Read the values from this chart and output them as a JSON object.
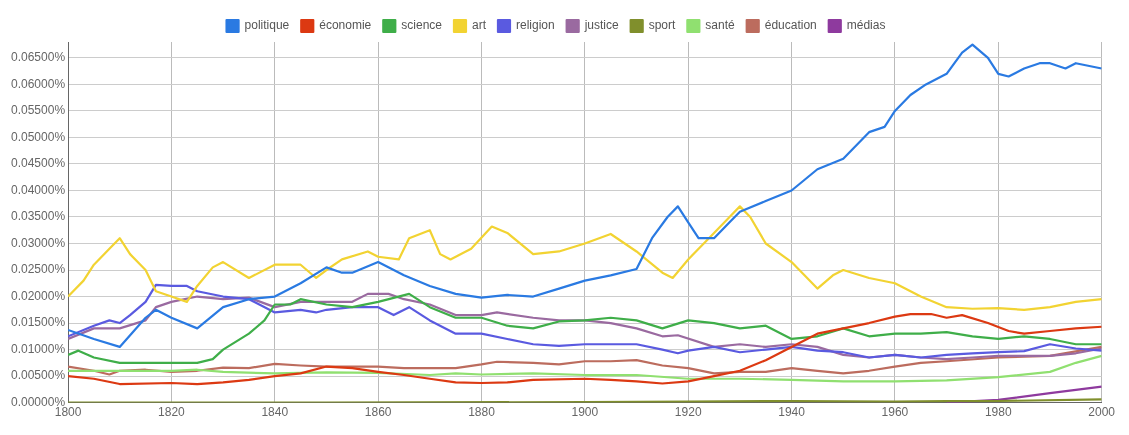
{
  "chart_data": {
    "type": "line",
    "legend": "top",
    "grid": true,
    "marker": "none",
    "line_style": "solid",
    "xlim": [
      1800,
      2000
    ],
    "xticks": [
      1800,
      1820,
      1840,
      1860,
      1880,
      1900,
      1920,
      1940,
      1960,
      1980,
      2000
    ],
    "ylim": [
      0,
      0.068
    ],
    "yticks": [
      {
        "value": 0,
        "label": "0.00000%"
      },
      {
        "value": 0.005,
        "label": "0.00500%"
      },
      {
        "value": 0.01,
        "label": "0.01000%"
      },
      {
        "value": 0.015,
        "label": "0.01500%"
      },
      {
        "value": 0.02,
        "label": "0.02000%"
      },
      {
        "value": 0.025,
        "label": "0.02500%"
      },
      {
        "value": 0.03,
        "label": "0.03000%"
      },
      {
        "value": 0.035,
        "label": "0.03500%"
      },
      {
        "value": 0.04,
        "label": "0.04000%"
      },
      {
        "value": 0.045,
        "label": "0.04500%"
      },
      {
        "value": 0.05,
        "label": "0.05000%"
      },
      {
        "value": 0.055,
        "label": "0.05500%"
      },
      {
        "value": 0.06,
        "label": "0.06000%"
      },
      {
        "value": 0.065,
        "label": "0.06500%"
      }
    ],
    "series": [
      {
        "name": "politique",
        "color": "#2a7ae2",
        "x": [
          1800,
          1805,
          1810,
          1815,
          1817,
          1820,
          1825,
          1830,
          1835,
          1840,
          1845,
          1850,
          1853,
          1855,
          1860,
          1865,
          1870,
          1875,
          1880,
          1885,
          1890,
          1895,
          1900,
          1905,
          1910,
          1913,
          1916,
          1918,
          1920,
          1922,
          1925,
          1928,
          1930,
          1935,
          1940,
          1945,
          1950,
          1955,
          1958,
          1960,
          1963,
          1966,
          1970,
          1973,
          1975,
          1978,
          1980,
          1982,
          1985,
          1988,
          1990,
          1993,
          1995,
          2000
        ],
        "values": [
          0.0137,
          0.012,
          0.0105,
          0.016,
          0.0175,
          0.016,
          0.014,
          0.018,
          0.0195,
          0.02,
          0.0225,
          0.0255,
          0.0245,
          0.0245,
          0.0265,
          0.024,
          0.022,
          0.0205,
          0.0198,
          0.0203,
          0.02,
          0.0215,
          0.023,
          0.024,
          0.0252,
          0.031,
          0.035,
          0.037,
          0.034,
          0.031,
          0.031,
          0.034,
          0.036,
          0.038,
          0.04,
          0.044,
          0.046,
          0.051,
          0.052,
          0.055,
          0.058,
          0.06,
          0.062,
          0.066,
          0.0675,
          0.065,
          0.062,
          0.0615,
          0.063,
          0.064,
          0.064,
          0.063,
          0.064,
          0.063
        ]
      },
      {
        "name": "économie",
        "color": "#dc3912",
        "x": [
          1800,
          1805,
          1810,
          1820,
          1825,
          1830,
          1835,
          1840,
          1845,
          1850,
          1855,
          1860,
          1865,
          1870,
          1875,
          1880,
          1885,
          1890,
          1900,
          1905,
          1910,
          1915,
          1920,
          1925,
          1930,
          1935,
          1940,
          1945,
          1950,
          1955,
          1960,
          1963,
          1967,
          1970,
          1973,
          1978,
          1982,
          1985,
          1990,
          1995,
          2000
        ],
        "values": [
          0.005,
          0.0045,
          0.0035,
          0.0037,
          0.0035,
          0.0038,
          0.0043,
          0.005,
          0.0055,
          0.0068,
          0.0065,
          0.0058,
          0.0052,
          0.0045,
          0.0038,
          0.0037,
          0.0038,
          0.0043,
          0.0045,
          0.0043,
          0.004,
          0.0036,
          0.004,
          0.005,
          0.006,
          0.008,
          0.0105,
          0.013,
          0.014,
          0.015,
          0.0162,
          0.0167,
          0.0167,
          0.016,
          0.0165,
          0.015,
          0.0135,
          0.013,
          0.0135,
          0.014,
          0.0143
        ]
      },
      {
        "name": "science",
        "color": "#3fae49",
        "x": [
          1800,
          1802,
          1805,
          1810,
          1815,
          1820,
          1825,
          1828,
          1830,
          1835,
          1838,
          1840,
          1843,
          1845,
          1850,
          1855,
          1860,
          1866,
          1870,
          1875,
          1880,
          1885,
          1890,
          1895,
          1900,
          1905,
          1910,
          1915,
          1920,
          1925,
          1930,
          1935,
          1940,
          1945,
          1950,
          1955,
          1960,
          1965,
          1970,
          1975,
          1980,
          1985,
          1990,
          1995,
          2000
        ],
        "values": [
          0.009,
          0.0098,
          0.0085,
          0.0075,
          0.0075,
          0.0075,
          0.0075,
          0.0082,
          0.01,
          0.013,
          0.0155,
          0.0185,
          0.0185,
          0.0195,
          0.0185,
          0.018,
          0.019,
          0.0205,
          0.018,
          0.016,
          0.016,
          0.0145,
          0.014,
          0.0153,
          0.0155,
          0.016,
          0.0155,
          0.014,
          0.0155,
          0.015,
          0.014,
          0.0145,
          0.012,
          0.0125,
          0.014,
          0.0125,
          0.013,
          0.013,
          0.0133,
          0.0125,
          0.012,
          0.0125,
          0.012,
          0.011,
          0.011
        ]
      },
      {
        "name": "art",
        "color": "#f2d332",
        "x": [
          1800,
          1803,
          1805,
          1808,
          1810,
          1812,
          1815,
          1817,
          1820,
          1823,
          1825,
          1828,
          1830,
          1835,
          1840,
          1845,
          1848,
          1850,
          1853,
          1858,
          1860,
          1864,
          1866,
          1870,
          1872,
          1874,
          1878,
          1882,
          1885,
          1890,
          1895,
          1900,
          1905,
          1910,
          1915,
          1917,
          1920,
          1925,
          1928,
          1930,
          1932,
          1935,
          1940,
          1945,
          1948,
          1950,
          1955,
          1960,
          1965,
          1970,
          1975,
          1980,
          1985,
          1990,
          1995,
          2000
        ],
        "values": [
          0.02,
          0.023,
          0.026,
          0.029,
          0.031,
          0.028,
          0.025,
          0.021,
          0.02,
          0.019,
          0.022,
          0.0255,
          0.0265,
          0.0235,
          0.026,
          0.026,
          0.0235,
          0.025,
          0.027,
          0.0285,
          0.0275,
          0.027,
          0.031,
          0.0325,
          0.028,
          0.027,
          0.029,
          0.0332,
          0.032,
          0.028,
          0.0285,
          0.03,
          0.0318,
          0.0285,
          0.0245,
          0.0235,
          0.027,
          0.032,
          0.035,
          0.037,
          0.035,
          0.03,
          0.0265,
          0.0215,
          0.024,
          0.025,
          0.0235,
          0.0225,
          0.02,
          0.018,
          0.0177,
          0.0178,
          0.0175,
          0.018,
          0.019,
          0.0195
        ]
      },
      {
        "name": "religion",
        "color": "#5a5ae0",
        "x": [
          1800,
          1805,
          1808,
          1810,
          1812,
          1815,
          1817,
          1820,
          1823,
          1825,
          1830,
          1835,
          1840,
          1845,
          1848,
          1850,
          1855,
          1860,
          1863,
          1866,
          1870,
          1875,
          1880,
          1885,
          1890,
          1895,
          1900,
          1910,
          1915,
          1918,
          1920,
          1925,
          1930,
          1935,
          1940,
          1945,
          1950,
          1955,
          1960,
          1965,
          1970,
          1975,
          1980,
          1985,
          1990,
          1995,
          2000
        ],
        "values": [
          0.0125,
          0.0145,
          0.0155,
          0.015,
          0.0165,
          0.019,
          0.0222,
          0.022,
          0.022,
          0.021,
          0.02,
          0.0195,
          0.017,
          0.0175,
          0.017,
          0.0175,
          0.018,
          0.018,
          0.0165,
          0.018,
          0.0155,
          0.013,
          0.013,
          0.012,
          0.011,
          0.0107,
          0.011,
          0.011,
          0.01,
          0.0093,
          0.0098,
          0.0105,
          0.0095,
          0.01,
          0.0105,
          0.0098,
          0.0095,
          0.0085,
          0.009,
          0.0085,
          0.009,
          0.0093,
          0.0095,
          0.0097,
          0.011,
          0.0102,
          0.0098
        ]
      },
      {
        "name": "justice",
        "color": "#9a6aa0",
        "x": [
          1800,
          1805,
          1810,
          1815,
          1817,
          1820,
          1825,
          1830,
          1835,
          1840,
          1845,
          1850,
          1855,
          1858,
          1862,
          1865,
          1870,
          1875,
          1880,
          1883,
          1890,
          1895,
          1900,
          1905,
          1910,
          1915,
          1918,
          1925,
          1930,
          1935,
          1940,
          1945,
          1950,
          1955,
          1960,
          1965,
          1970,
          1975,
          1980,
          1990,
          1995,
          2000
        ],
        "values": [
          0.012,
          0.014,
          0.014,
          0.0155,
          0.018,
          0.019,
          0.02,
          0.0195,
          0.0198,
          0.018,
          0.019,
          0.019,
          0.019,
          0.0205,
          0.0205,
          0.0195,
          0.0185,
          0.0165,
          0.0165,
          0.017,
          0.016,
          0.0155,
          0.0155,
          0.015,
          0.014,
          0.0125,
          0.0127,
          0.0105,
          0.011,
          0.0105,
          0.011,
          0.0105,
          0.009,
          0.0085,
          0.009,
          0.0085,
          0.0082,
          0.0085,
          0.0088,
          0.0088,
          0.0093,
          0.0102
        ]
      },
      {
        "name": "sport",
        "color": "#808f2c",
        "x": [
          1800,
          1850,
          1900,
          1920,
          1940,
          1960,
          1970,
          1980,
          2000
        ],
        "values": [
          0,
          0,
          0.0001,
          0.0002,
          0.0003,
          0.0002,
          0.0003,
          0.0003,
          0.0006
        ]
      },
      {
        "name": "santé",
        "color": "#90e070",
        "x": [
          1800,
          1810,
          1820,
          1825,
          1830,
          1840,
          1850,
          1860,
          1870,
          1875,
          1880,
          1890,
          1900,
          1910,
          1920,
          1930,
          1940,
          1950,
          1960,
          1970,
          1980,
          1990,
          1995,
          2000
        ],
        "values": [
          0.006,
          0.006,
          0.006,
          0.0062,
          0.0058,
          0.0055,
          0.0057,
          0.0056,
          0.0052,
          0.0055,
          0.0053,
          0.0055,
          0.0052,
          0.0052,
          0.0045,
          0.0045,
          0.0043,
          0.004,
          0.004,
          0.0042,
          0.0048,
          0.0058,
          0.0075,
          0.0088
        ]
      },
      {
        "name": "éducation",
        "color": "#bc6c5e",
        "x": [
          1800,
          1805,
          1808,
          1810,
          1815,
          1820,
          1825,
          1830,
          1835,
          1840,
          1845,
          1850,
          1855,
          1860,
          1865,
          1870,
          1875,
          1880,
          1883,
          1890,
          1895,
          1900,
          1905,
          1910,
          1915,
          1920,
          1925,
          1930,
          1935,
          1940,
          1945,
          1950,
          1955,
          1960,
          1965,
          1970,
          1980,
          1990,
          2000
        ],
        "values": [
          0.0068,
          0.006,
          0.0053,
          0.006,
          0.0062,
          0.0058,
          0.006,
          0.0066,
          0.0065,
          0.0073,
          0.007,
          0.0068,
          0.0068,
          0.0068,
          0.0065,
          0.0065,
          0.0065,
          0.0072,
          0.0077,
          0.0075,
          0.0072,
          0.0078,
          0.0078,
          0.008,
          0.007,
          0.0065,
          0.0055,
          0.0058,
          0.0058,
          0.0065,
          0.006,
          0.0055,
          0.006,
          0.0068,
          0.0075,
          0.0078,
          0.0085,
          0.0088,
          0.0105
        ]
      },
      {
        "name": "médias",
        "color": "#8e3a9e",
        "x": [
          1970,
          1980,
          1990,
          2000
        ],
        "values": [
          0,
          0.0005,
          0.0018,
          0.003
        ]
      }
    ]
  }
}
